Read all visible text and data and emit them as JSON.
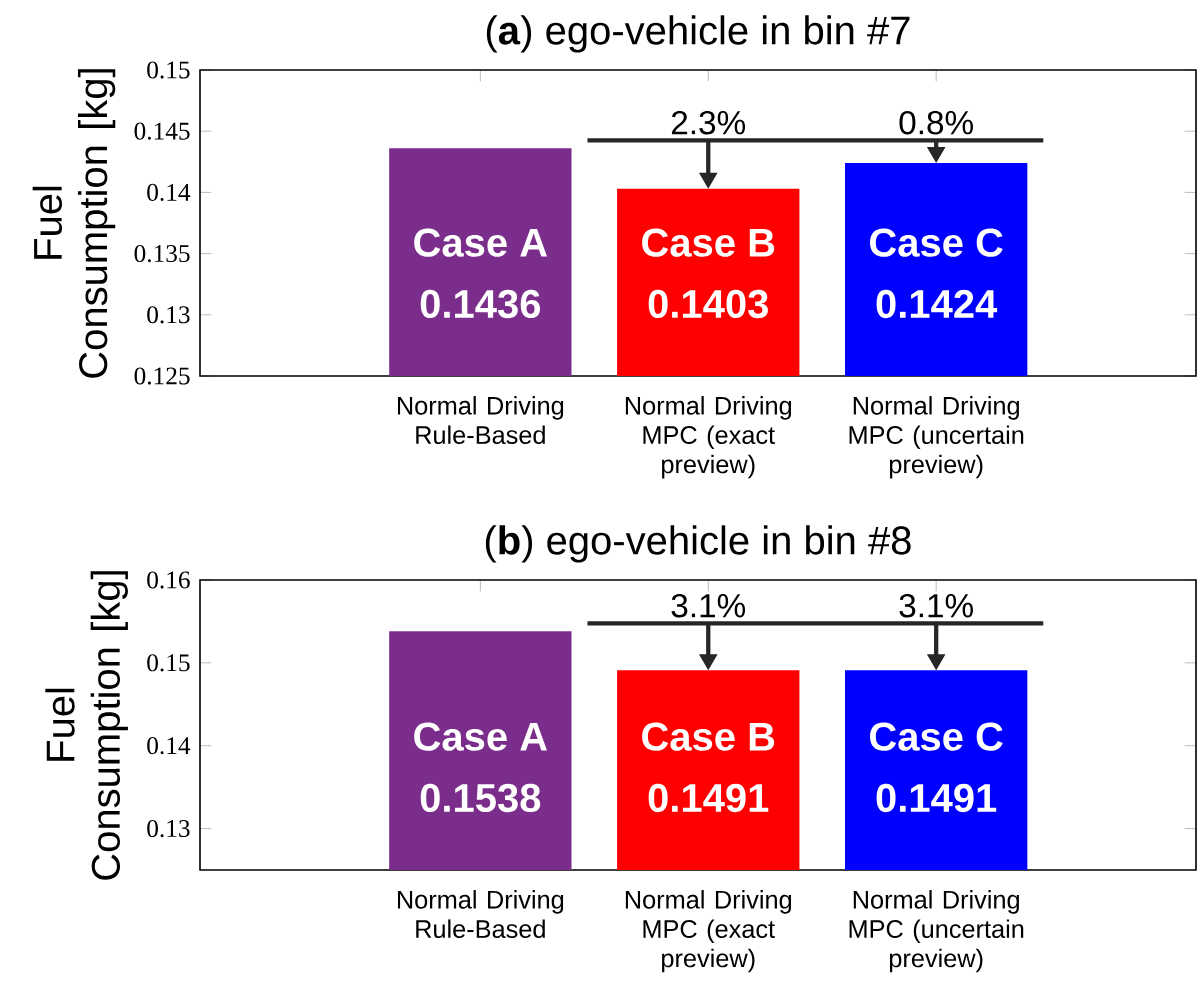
{
  "chart_data": [
    {
      "type": "bar",
      "title": "(**a**) ego-vehicle in bin #7",
      "ylabel": "Fuel Consumption [kg]",
      "categories": [
        "Normal Driving Rule-Based",
        "Normal Driving MPC (exact preview)",
        "Normal Driving MPC (uncertain preview)"
      ],
      "values": [
        0.1436,
        0.1403,
        0.1424
      ],
      "colors": [
        "#7b2d8b",
        "#ff0000",
        "#0000ff"
      ],
      "ylim": [
        0.125,
        0.15
      ],
      "yticks": [
        0.125,
        0.13,
        0.135,
        0.14,
        0.145,
        0.15
      ],
      "data_labels": true,
      "grid": false,
      "annotations": [
        "Case A",
        "Case B",
        "Case C",
        "2.3%",
        "0.8%"
      ]
    },
    {
      "type": "bar",
      "title": "(**b**) ego-vehicle in bin #8",
      "ylabel": "Fuel Consumption [kg]",
      "categories": [
        "Normal Driving Rule-Based",
        "Normal Driving MPC (exact preview)",
        "Normal Driving MPC (uncertain preview)"
      ],
      "values": [
        0.1538,
        0.1491,
        0.1491
      ],
      "colors": [
        "#7b2d8b",
        "#ff0000",
        "#0000ff"
      ],
      "ylim": [
        0.125,
        0.16
      ],
      "yticks": [
        0.13,
        0.14,
        0.15,
        0.16
      ],
      "data_labels": true,
      "grid": false,
      "annotations": [
        "Case A",
        "Case B",
        "Case C",
        "3.1%",
        "3.1%"
      ]
    }
  ]
}
